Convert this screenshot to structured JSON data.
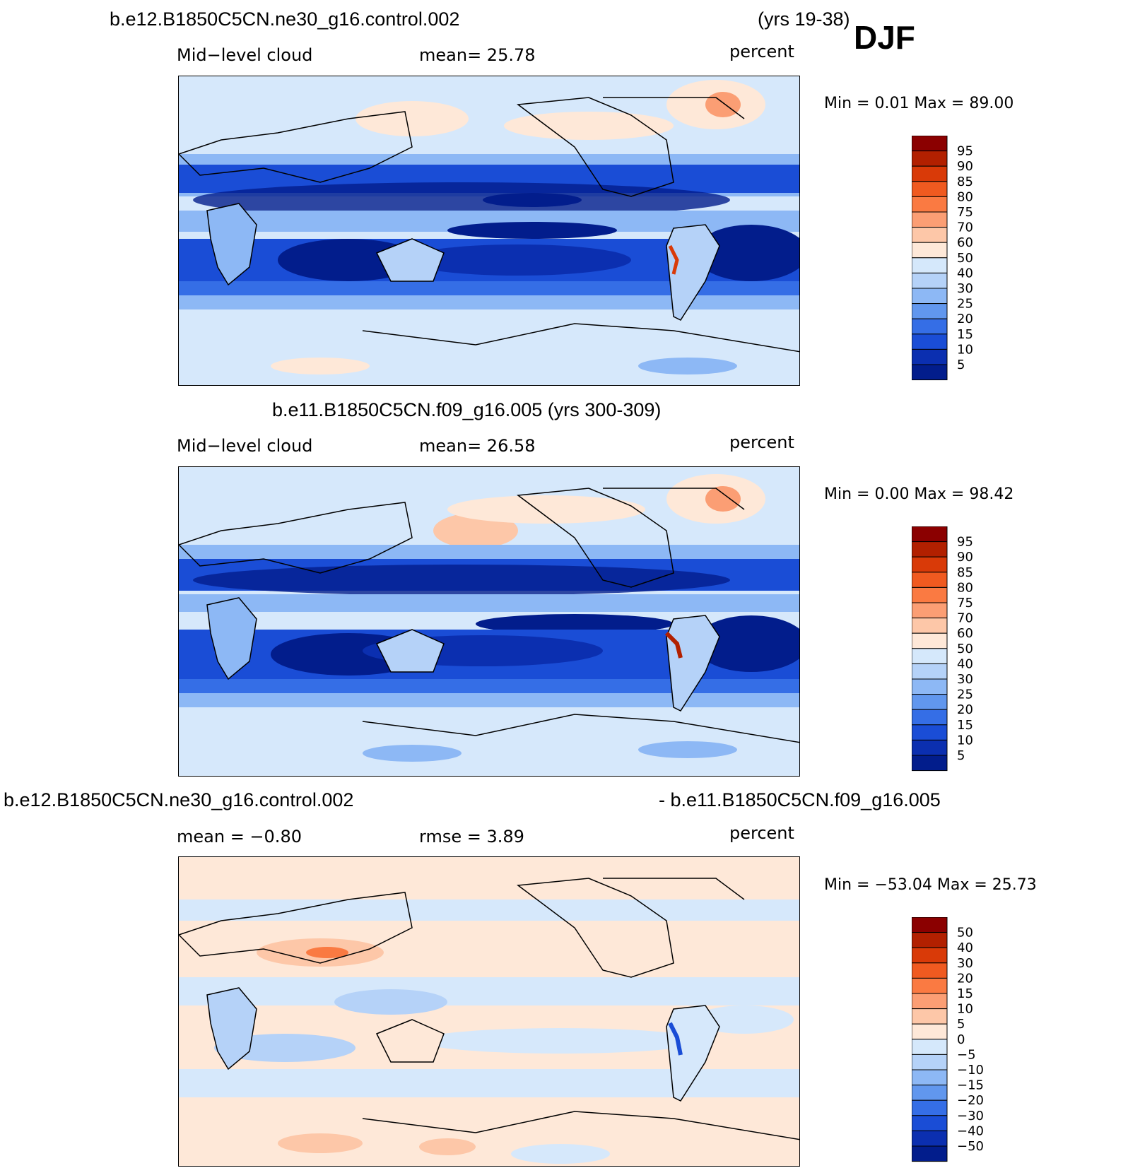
{
  "season": "DJF",
  "panels": [
    {
      "case_title": "b.e12.B1850C5CN.ne30_g16.control.002",
      "years": "(yrs 19-38)",
      "variable": "Mid−level cloud",
      "stat": "mean=   25.78",
      "units": "percent",
      "minmax": "Min =     0.01  Max =    89.00"
    },
    {
      "case_title": "b.e11.B1850C5CN.f09_g16.005 (yrs 300-309)",
      "variable": "Mid−level cloud",
      "stat": "mean=   26.58",
      "units": "percent",
      "minmax": "Min =     0.00  Max =    98.42"
    },
    {
      "case_title_left": "b.e12.B1850C5CN.ne30_g16.control.002",
      "case_title_right": "- b.e11.B1850C5CN.f09_g16.005",
      "stat_left": "mean  =    −0.80",
      "stat_right": "rmse  =      3.89",
      "units": "percent",
      "minmax": "Min =  −53.04  Max =    25.73"
    }
  ],
  "colorbars": {
    "abs": {
      "labels": [
        "95",
        "90",
        "85",
        "80",
        "75",
        "70",
        "60",
        "50",
        "40",
        "30",
        "25",
        "20",
        "15",
        "10",
        "5"
      ],
      "colors": [
        "#8b0000",
        "#b22000",
        "#d93a08",
        "#f05a20",
        "#fa7a42",
        "#fb9e74",
        "#fdc7a8",
        "#fee8d8",
        "#d5e8fb",
        "#b5d2f8",
        "#8db8f5",
        "#6197ee",
        "#356ee6",
        "#1a4dd6",
        "#0b2fb0",
        "#021d8c"
      ]
    },
    "diff": {
      "labels": [
        "50",
        "40",
        "30",
        "20",
        "15",
        "10",
        "5",
        "0",
        "−5",
        "−10",
        "−15",
        "−20",
        "−30",
        "−40",
        "−50"
      ],
      "colors": [
        "#8b0000",
        "#b22000",
        "#d93a08",
        "#f05a20",
        "#fa7a42",
        "#fb9e74",
        "#fdc7a8",
        "#fee8d8",
        "#d5e8fb",
        "#b5d2f8",
        "#8db8f5",
        "#6197ee",
        "#356ee6",
        "#1a4dd6",
        "#0b2fb0",
        "#021d8c"
      ]
    }
  }
}
